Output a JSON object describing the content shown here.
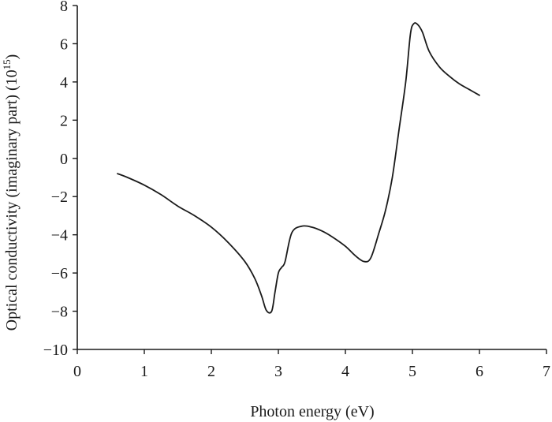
{
  "chart_data": {
    "type": "line",
    "title": "",
    "xlabel": "Photon energy (eV)",
    "ylabel_main": "Optical conductivity (imaginary part) (10",
    "ylabel_exponent": "15",
    "ylabel_close": ")",
    "xlim": [
      0,
      7
    ],
    "ylim": [
      -10,
      8
    ],
    "xticks": [
      0,
      1,
      2,
      3,
      4,
      5,
      6,
      7
    ],
    "yticks": [
      -10,
      -8,
      -6,
      -4,
      -2,
      0,
      2,
      4,
      6,
      8
    ],
    "xtick_labels": [
      "0",
      "1",
      "2",
      "3",
      "4",
      "5",
      "6",
      "7"
    ],
    "ytick_labels": [
      "−10",
      "−8",
      "−6",
      "−4",
      "−2",
      "0",
      "2",
      "4",
      "6",
      "8"
    ],
    "grid": false,
    "series": [
      {
        "color": "#1a1a1a",
        "x": [
          0.6,
          0.75,
          1.0,
          1.25,
          1.5,
          1.75,
          2.0,
          2.25,
          2.5,
          2.65,
          2.75,
          2.82,
          2.9,
          2.95,
          3.0,
          3.05,
          3.1,
          3.2,
          3.35,
          3.5,
          3.65,
          3.8,
          4.0,
          4.15,
          4.28,
          4.38,
          4.5,
          4.6,
          4.7,
          4.8,
          4.9,
          4.97,
          5.02,
          5.08,
          5.15,
          5.25,
          5.4,
          5.55,
          5.7,
          5.85,
          6.0
        ],
        "y": [
          -0.8,
          -1.0,
          -1.4,
          -1.9,
          -2.5,
          -3.0,
          -3.6,
          -4.4,
          -5.4,
          -6.3,
          -7.2,
          -7.95,
          -8.0,
          -7.0,
          -6.0,
          -5.7,
          -5.4,
          -3.9,
          -3.55,
          -3.6,
          -3.8,
          -4.1,
          -4.6,
          -5.1,
          -5.4,
          -5.2,
          -3.9,
          -2.7,
          -1.0,
          1.5,
          4.0,
          6.5,
          7.05,
          7.0,
          6.6,
          5.6,
          4.8,
          4.3,
          3.9,
          3.6,
          3.3
        ]
      }
    ]
  }
}
